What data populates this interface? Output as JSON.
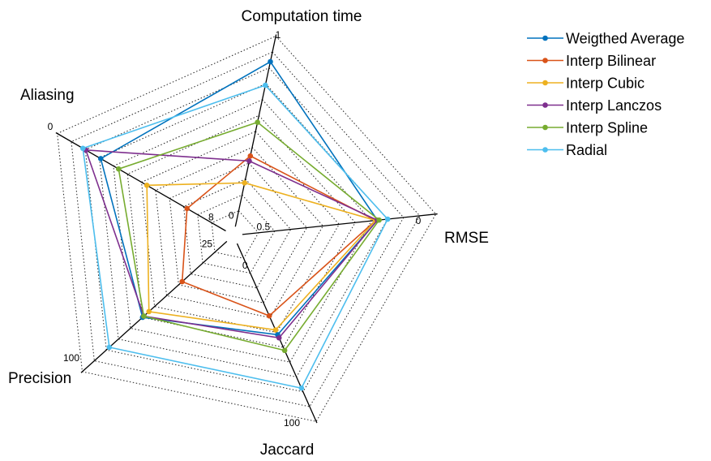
{
  "chart_data": {
    "type": "radar",
    "axes": [
      {
        "name": "Computation time",
        "min_label": "0",
        "max_label": "1",
        "min": 0,
        "max": 1
      },
      {
        "name": "RMSE",
        "min_label": "0.5",
        "max_label": "0",
        "min": 0.5,
        "max": 0
      },
      {
        "name": "Jaccard",
        "min_label": "0",
        "max_label": "100",
        "min": 0,
        "max": 100
      },
      {
        "name": "Precision",
        "min_label": "25",
        "max_label": "100",
        "min": 25,
        "max": 100
      },
      {
        "name": "Aliasing",
        "min_label": "8",
        "max_label": "0",
        "min": 8,
        "max": 0
      }
    ],
    "rings": 12,
    "grid": true,
    "legend_position": "top-right",
    "series": [
      {
        "name": "Weigthed Average",
        "color": "#0072BD",
        "values": [
          0.98,
          0.79,
          0.58,
          0.66,
          0.84
        ]
      },
      {
        "name": "Interp Bilinear",
        "color": "#D95319",
        "values": [
          0.42,
          0.78,
          0.46,
          0.35,
          0.26
        ]
      },
      {
        "name": "Interp Cubic",
        "color": "#EDB120",
        "values": [
          0.26,
          0.78,
          0.55,
          0.61,
          0.53
        ]
      },
      {
        "name": "Interp Lanczos",
        "color": "#7E2F8E",
        "values": [
          0.39,
          0.79,
          0.6,
          0.65,
          0.94
        ]
      },
      {
        "name": "Interp Spline",
        "color": "#77AC30",
        "values": [
          0.62,
          0.8,
          0.68,
          0.65,
          0.72
        ]
      },
      {
        "name": "Radial",
        "color": "#4DBEEE",
        "values": [
          0.84,
          0.85,
          0.92,
          0.92,
          0.96
        ]
      }
    ]
  }
}
